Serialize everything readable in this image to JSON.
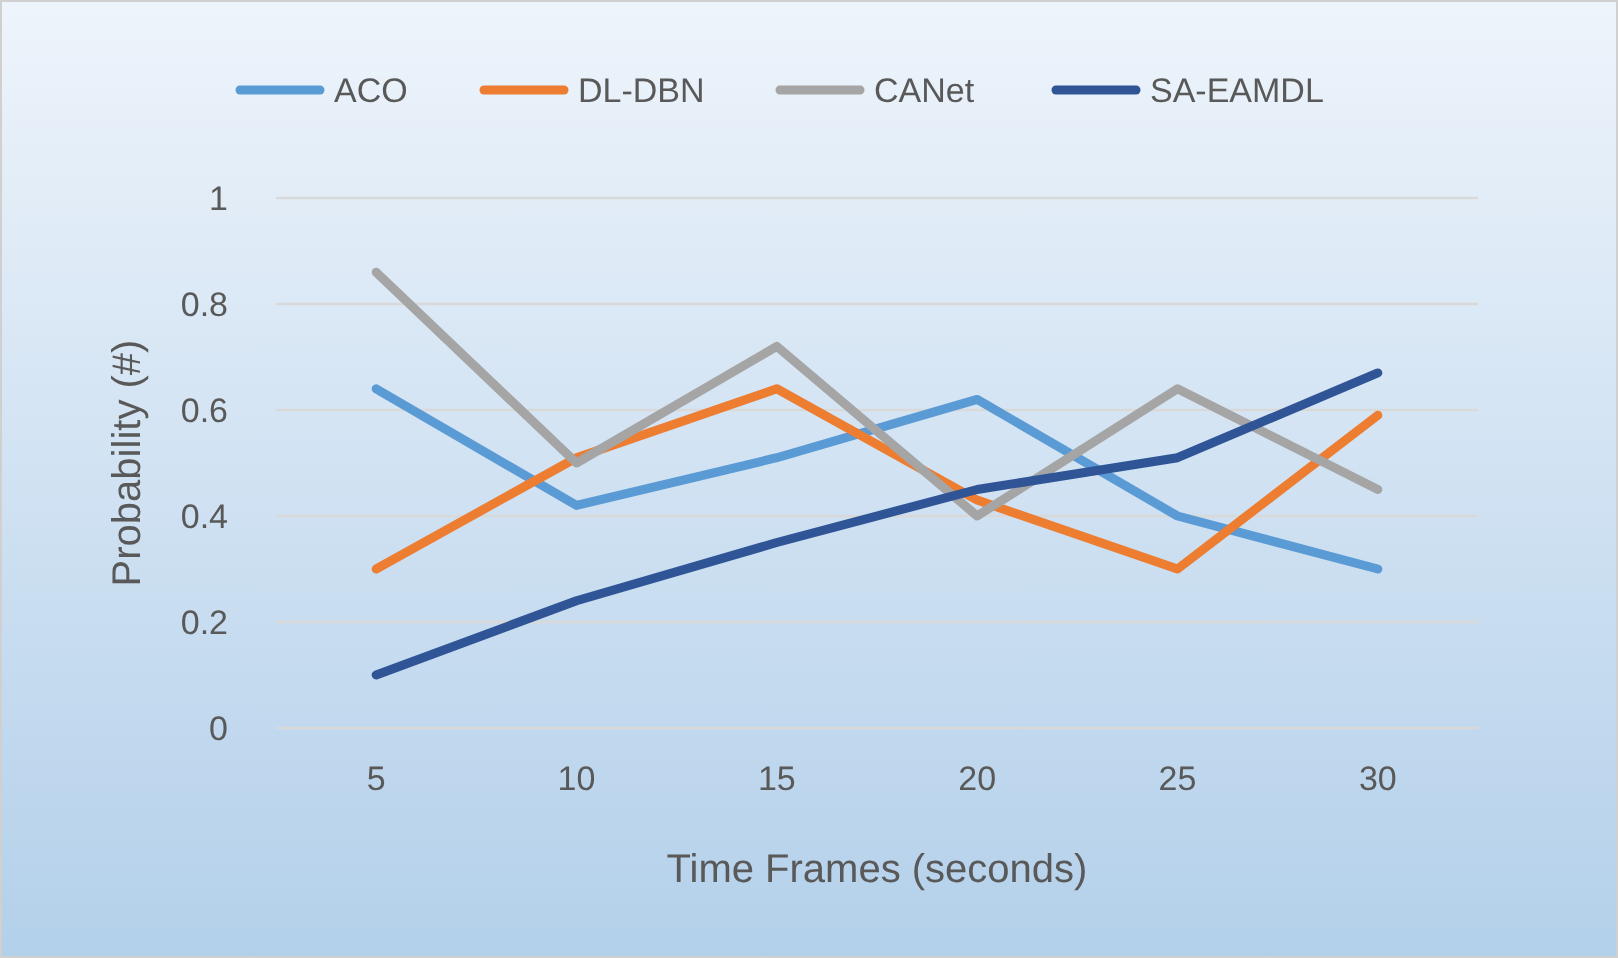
{
  "chart_data": {
    "type": "line",
    "xlabel": "Time Frames (seconds)",
    "ylabel": "Probability (#)",
    "categories": [
      "5",
      "10",
      "15",
      "20",
      "25",
      "30"
    ],
    "series": [
      {
        "name": "ACO",
        "color": "#5b9bd5",
        "values": [
          0.64,
          0.42,
          0.51,
          0.62,
          0.4,
          0.3
        ]
      },
      {
        "name": "DL-DBN",
        "color": "#ed7d31",
        "values": [
          0.3,
          0.51,
          0.64,
          0.43,
          0.3,
          0.59
        ]
      },
      {
        "name": "CANet",
        "color": "#a5a5a5",
        "values": [
          0.86,
          0.5,
          0.72,
          0.4,
          0.64,
          0.45
        ]
      },
      {
        "name": "SA-EAMDL",
        "color": "#2f5597",
        "values": [
          0.1,
          0.24,
          0.35,
          0.45,
          0.51,
          0.67
        ]
      }
    ],
    "ylim": [
      0,
      1
    ],
    "yticks": [
      0,
      0.2,
      0.4,
      0.6,
      0.8,
      1
    ],
    "grid": "y",
    "legend": "top",
    "marker": "none",
    "line_style": "solid"
  }
}
